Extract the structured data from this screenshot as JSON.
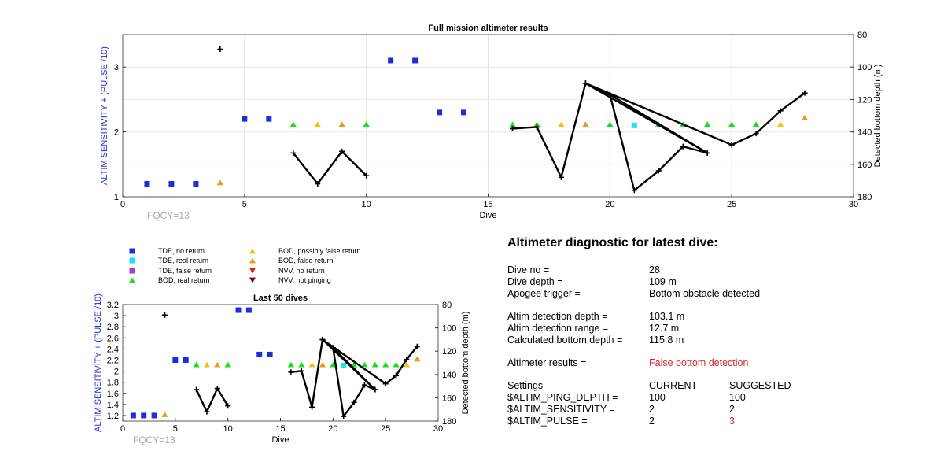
{
  "colors": {
    "tde_no_return": "#1f2fd6",
    "tde_real_return": "#19e3f0",
    "tde_false_return": "#a040c8",
    "bod_real_return": "#18e018",
    "bod_possibly_false": "#f5c010",
    "bod_false_return": "#e89a18",
    "nvv_no_return": "#e02020",
    "nvv_not_pinging": "#6b0d0d",
    "ylabel_left": "#1f2fd6",
    "alert": "#d62a2a"
  },
  "legend": [
    {
      "label": "TDE, no return",
      "marker": "square",
      "color_key": "tde_no_return"
    },
    {
      "label": "TDE, real return",
      "marker": "square",
      "color_key": "tde_real_return"
    },
    {
      "label": "TDE, false return",
      "marker": "square",
      "color_key": "tde_false_return"
    },
    {
      "label": "BOD, real return",
      "marker": "triangle-up",
      "color_key": "bod_real_return"
    },
    {
      "label": "BOD, possibly false return",
      "marker": "triangle-up",
      "color_key": "bod_possibly_false"
    },
    {
      "label": "BOD, false return",
      "marker": "triangle-up",
      "color_key": "bod_false_return"
    },
    {
      "label": "NVV, no return",
      "marker": "triangle-down",
      "color_key": "nvv_no_return"
    },
    {
      "label": "NVV, not pinging",
      "marker": "triangle-down",
      "color_key": "nvv_not_pinging"
    }
  ],
  "chart_data": [
    {
      "type": "scatter",
      "title": "Full mission altimeter results",
      "xlabel": "Dive",
      "ylabel": "ALTIM SENSITIVITY + (PULSE /10)",
      "ylabel_right": "Detected bottom depth (m)",
      "annotation": "FQCY=13",
      "xlim": [
        0,
        30
      ],
      "ylim": [
        1,
        3.5
      ],
      "ylim_right": [
        180,
        80
      ],
      "xticks": [
        0,
        5,
        10,
        15,
        20,
        25,
        30
      ],
      "yticks": [
        1,
        2,
        3
      ],
      "yticks_right": [
        80,
        100,
        120,
        140,
        160,
        180
      ],
      "grid": true,
      "markers": [
        {
          "x": 1,
          "y": 1.2,
          "category": "tde_no_return"
        },
        {
          "x": 2,
          "y": 1.2,
          "category": "tde_no_return"
        },
        {
          "x": 3,
          "y": 1.2,
          "category": "tde_no_return"
        },
        {
          "x": 4,
          "y": 1.22,
          "category": "bod_false_return"
        },
        {
          "x": 5,
          "y": 2.2,
          "category": "tde_no_return"
        },
        {
          "x": 6,
          "y": 2.2,
          "category": "tde_no_return"
        },
        {
          "x": 7,
          "y": 2.12,
          "category": "bod_real_return"
        },
        {
          "x": 8,
          "y": 2.12,
          "category": "bod_possibly_false"
        },
        {
          "x": 9,
          "y": 2.12,
          "category": "bod_false_return"
        },
        {
          "x": 10,
          "y": 2.12,
          "category": "bod_real_return"
        },
        {
          "x": 11,
          "y": 3.1,
          "category": "tde_no_return"
        },
        {
          "x": 12,
          "y": 3.1,
          "category": "tde_no_return"
        },
        {
          "x": 13,
          "y": 2.3,
          "category": "tde_no_return"
        },
        {
          "x": 14,
          "y": 2.3,
          "category": "tde_no_return"
        },
        {
          "x": 16,
          "y": 2.12,
          "category": "bod_real_return"
        },
        {
          "x": 17,
          "y": 2.12,
          "category": "bod_real_return"
        },
        {
          "x": 18,
          "y": 2.12,
          "category": "bod_possibly_false"
        },
        {
          "x": 19,
          "y": 2.12,
          "category": "bod_false_return"
        },
        {
          "x": 20,
          "y": 2.12,
          "category": "bod_real_return"
        },
        {
          "x": 21,
          "y": 2.1,
          "category": "tde_real_return"
        },
        {
          "x": 22,
          "y": 2.12,
          "category": "bod_real_return"
        },
        {
          "x": 23,
          "y": 2.12,
          "category": "bod_real_return"
        },
        {
          "x": 24,
          "y": 2.12,
          "category": "bod_real_return"
        },
        {
          "x": 25,
          "y": 2.12,
          "category": "bod_real_return"
        },
        {
          "x": 26,
          "y": 2.12,
          "category": "bod_real_return"
        },
        {
          "x": 27,
          "y": 2.12,
          "category": "bod_possibly_false"
        },
        {
          "x": 28,
          "y": 2.22,
          "category": "bod_false_return"
        }
      ],
      "depth_segments": [
        [
          {
            "x": 4,
            "y": 89
          }
        ],
        [
          {
            "x": 7,
            "y": 153
          },
          {
            "x": 8,
            "y": 172
          },
          {
            "x": 9,
            "y": 152
          },
          {
            "x": 10,
            "y": 167
          }
        ],
        [
          {
            "x": 16,
            "y": 138
          },
          {
            "x": 17,
            "y": 137
          },
          {
            "x": 18,
            "y": 168
          },
          {
            "x": 19,
            "y": 110
          },
          {
            "x": 20,
            "y": 117
          },
          {
            "x": 21,
            "y": 176
          },
          {
            "x": 22,
            "y": 164
          },
          {
            "x": 23,
            "y": 149
          },
          {
            "x": 24,
            "y": 153
          },
          {
            "x": 19,
            "y": 110
          },
          {
            "x": 25,
            "y": 148
          },
          {
            "x": 26,
            "y": 141
          },
          {
            "x": 27,
            "y": 127
          },
          {
            "x": 28,
            "y": 116
          }
        ],
        [
          {
            "x": 20,
            "y": 117
          },
          {
            "x": 24,
            "y": 153
          }
        ]
      ]
    },
    {
      "type": "scatter",
      "title": "Last 50 dives",
      "xlabel": "Dive",
      "ylabel": "ALTIM SENSITIVITY + (PULSE /10)",
      "ylabel_right": "Detected bottom depth (m)",
      "annotation": "FQCY=13",
      "xlim": [
        0,
        30
      ],
      "ylim": [
        1.1,
        3.2
      ],
      "ylim_right": [
        180,
        80
      ],
      "xticks": [
        0,
        5,
        10,
        15,
        20,
        25,
        30
      ],
      "yticks": [
        1.2,
        1.4,
        1.6,
        1.8,
        2,
        2.2,
        2.4,
        2.6,
        2.8,
        3,
        3.2
      ],
      "yticks_right": [
        80,
        100,
        120,
        140,
        160,
        180
      ],
      "grid": false
    }
  ],
  "diagnostic": {
    "title": "Altimeter diagnostic for latest dive:",
    "dive_no_label": "Dive no =",
    "dive_no": "28",
    "dive_depth_label": "Dive depth =",
    "dive_depth": "109 m",
    "apogee_label": "Apogee trigger =",
    "apogee": "Bottom obstacle detected",
    "det_depth_label": "Altim detection depth =",
    "det_depth": "103.1 m",
    "det_range_label": "Altim detection range =",
    "det_range": "12.7 m",
    "calc_depth_label": "Calculated bottom depth =",
    "calc_depth": "115.8 m",
    "results_label": "Altimeter results =",
    "results": "False bottom detection",
    "settings_label": "Settings",
    "current_label": "CURRENT",
    "suggested_label": "SUGGESTED",
    "settings": [
      {
        "name": "$ALTIM_PING_DEPTH =",
        "current": "100",
        "suggested": "100",
        "changed": false
      },
      {
        "name": "$ALTIM_SENSITIVITY =",
        "current": "2",
        "suggested": "2",
        "changed": false
      },
      {
        "name": "$ALTIM_PULSE =",
        "current": "2",
        "suggested": "3",
        "changed": true
      }
    ]
  }
}
